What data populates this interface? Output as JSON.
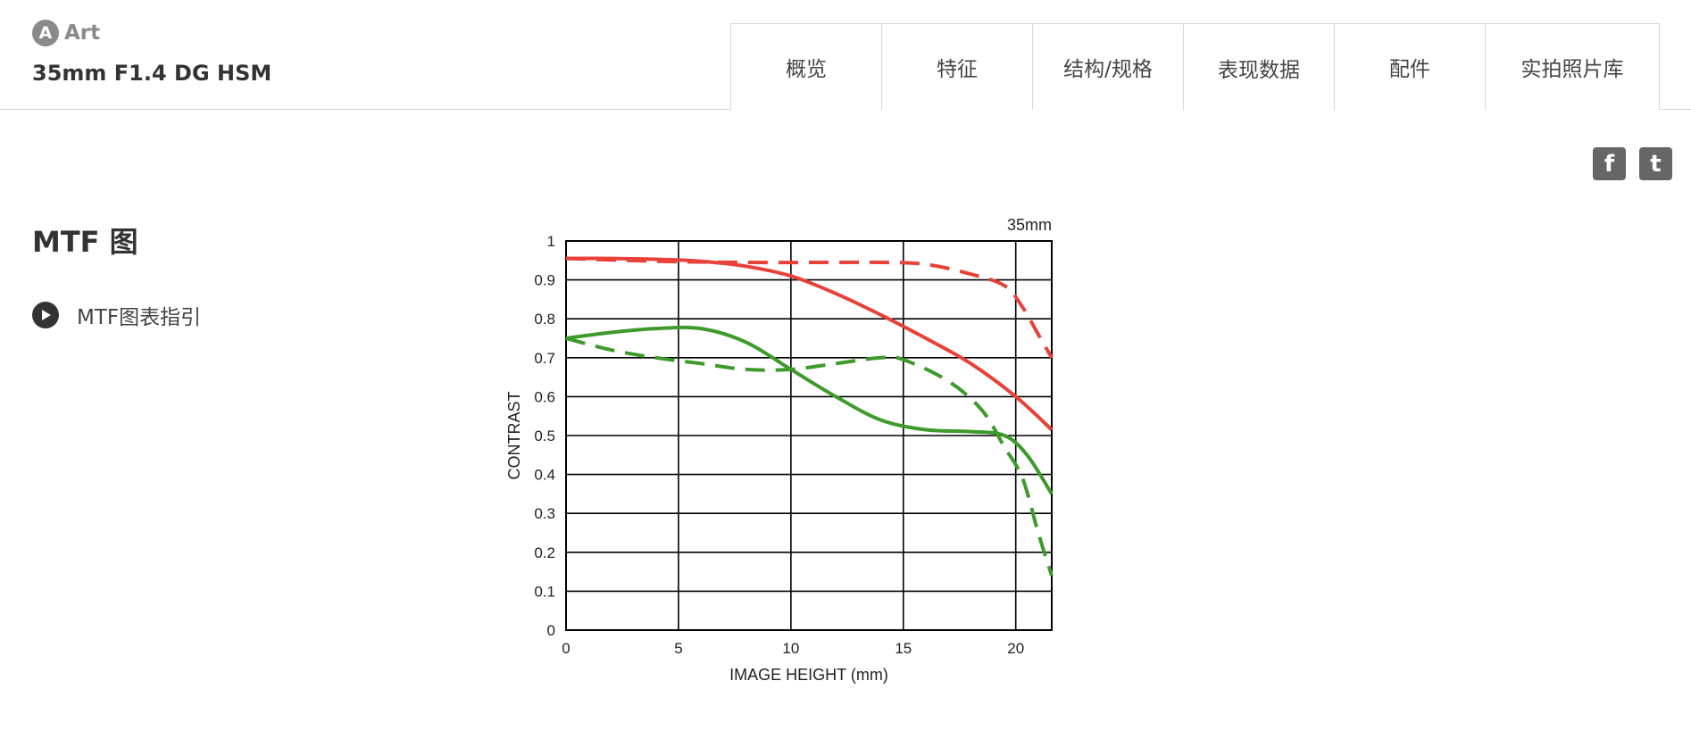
{
  "header": {
    "series_badge_letter": "A",
    "series_name": "Art",
    "product_title": "35mm F1.4 DG HSM",
    "tabs": [
      {
        "label": "概览"
      },
      {
        "label": "特征"
      },
      {
        "label": "结构/规格"
      },
      {
        "label": "表现数据",
        "active": true
      },
      {
        "label": "配件"
      },
      {
        "label": "实拍照片库"
      }
    ]
  },
  "share": {
    "facebook_glyph": "f",
    "twitter_glyph": "t"
  },
  "section": {
    "title": "MTF 图",
    "guide_link_label": "MTF图表指引"
  },
  "icons": {
    "series_badge": "art-series-icon",
    "facebook": "facebook-icon",
    "twitter": "twitter-icon",
    "play": "play-circle-icon"
  },
  "colors": {
    "red_series": "#e8413a",
    "green_series": "#3e9a2b",
    "grid": "#000000",
    "accent_gray": "#8a8a8a"
  },
  "chart_data": {
    "type": "line",
    "title": "35mm",
    "xlabel": "IMAGE HEIGHT (mm)",
    "ylabel": "CONTRAST",
    "xlim": [
      0,
      21.6
    ],
    "ylim": [
      0,
      1
    ],
    "x_ticks": [
      0,
      5,
      10,
      15,
      20
    ],
    "y_ticks": [
      "0",
      "0.1",
      "0.2",
      "0.3",
      "0.4",
      "0.5",
      "0.6",
      "0.7",
      "0.8",
      "0.9",
      "1"
    ],
    "grid": true,
    "series": [
      {
        "color": "#e8413a",
        "dashed": false,
        "points": [
          [
            0,
            0.955
          ],
          [
            2,
            0.955
          ],
          [
            4,
            0.953
          ],
          [
            6,
            0.948
          ],
          [
            8,
            0.935
          ],
          [
            10,
            0.91
          ],
          [
            12,
            0.865
          ],
          [
            14,
            0.81
          ],
          [
            16,
            0.75
          ],
          [
            18,
            0.685
          ],
          [
            20,
            0.6
          ],
          [
            21.6,
            0.515
          ]
        ]
      },
      {
        "color": "#e8413a",
        "dashed": true,
        "points": [
          [
            0,
            0.955
          ],
          [
            4,
            0.948
          ],
          [
            8,
            0.945
          ],
          [
            12,
            0.945
          ],
          [
            14,
            0.945
          ],
          [
            16,
            0.94
          ],
          [
            18,
            0.915
          ],
          [
            19.5,
            0.885
          ],
          [
            20.3,
            0.83
          ],
          [
            21,
            0.76
          ],
          [
            21.6,
            0.7
          ]
        ]
      },
      {
        "color": "#3e9a2b",
        "dashed": false,
        "points": [
          [
            0,
            0.75
          ],
          [
            2,
            0.765
          ],
          [
            4,
            0.775
          ],
          [
            6,
            0.775
          ],
          [
            8,
            0.74
          ],
          [
            10,
            0.67
          ],
          [
            12,
            0.6
          ],
          [
            14,
            0.54
          ],
          [
            16,
            0.515
          ],
          [
            18,
            0.51
          ],
          [
            19.5,
            0.5
          ],
          [
            20.5,
            0.45
          ],
          [
            21.6,
            0.35
          ]
        ]
      },
      {
        "color": "#3e9a2b",
        "dashed": true,
        "points": [
          [
            0,
            0.75
          ],
          [
            2,
            0.72
          ],
          [
            4,
            0.7
          ],
          [
            6,
            0.685
          ],
          [
            8,
            0.67
          ],
          [
            10,
            0.67
          ],
          [
            12,
            0.685
          ],
          [
            14,
            0.7
          ],
          [
            15,
            0.695
          ],
          [
            17,
            0.64
          ],
          [
            18.5,
            0.565
          ],
          [
            19.5,
            0.47
          ],
          [
            20.3,
            0.39
          ],
          [
            21,
            0.25
          ],
          [
            21.6,
            0.14
          ]
        ]
      }
    ]
  }
}
